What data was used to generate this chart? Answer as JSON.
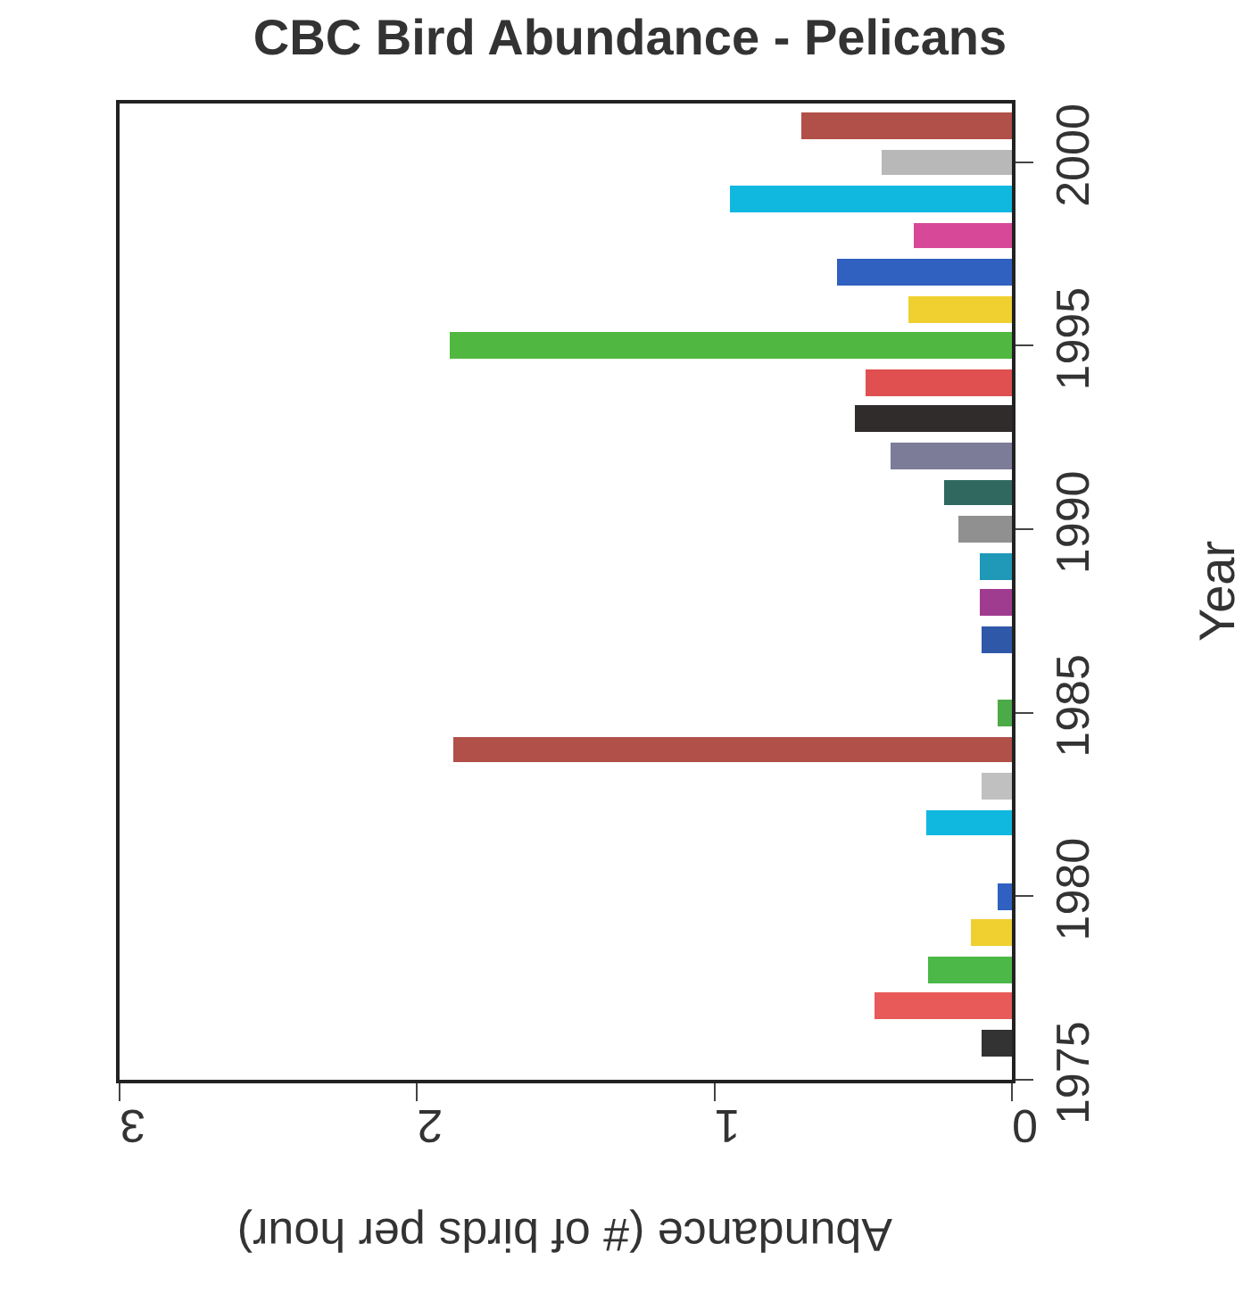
{
  "chart_data": {
    "type": "bar",
    "orientation": "horizontal",
    "title": "CBC Bird Abundance - Pelicans",
    "xlabel": "Abundance (# of birds per hour)",
    "ylabel": "Year",
    "x": [
      1976,
      1977,
      1978,
      1979,
      1980,
      1982,
      1983,
      1984,
      1985,
      1987,
      1988,
      1989,
      1990,
      1991,
      1992,
      1993,
      1994,
      1995,
      1996,
      1997,
      1998,
      1999,
      2000,
      2001
    ],
    "values": [
      0.1,
      0.46,
      0.28,
      0.14,
      0.05,
      0.29,
      0.1,
      1.88,
      0.05,
      0.1,
      0.11,
      0.11,
      0.18,
      0.23,
      0.41,
      0.53,
      0.49,
      1.89,
      0.35,
      0.59,
      0.33,
      0.95,
      0.44,
      0.71
    ],
    "colors": [
      "#333333",
      "#e85a5a",
      "#4cb848",
      "#f0d030",
      "#3060c0",
      "#10b8e0",
      "#c0c0c0",
      "#b05048",
      "#4caa48",
      "#3058a8",
      "#a03c90",
      "#2098b8",
      "#909090",
      "#306860",
      "#7c7c98",
      "#302c2c",
      "#e05050",
      "#50b840",
      "#f0d030",
      "#3060c0",
      "#d84898",
      "#10b8e0",
      "#b8b8b8",
      "#b05048"
    ],
    "xlim": [
      3,
      0
    ],
    "xticks": [
      3,
      2,
      1,
      0
    ],
    "ylim": [
      1975,
      2001.6
    ],
    "yticks": [
      1975,
      1980,
      1985,
      1990,
      1995,
      2000
    ]
  }
}
